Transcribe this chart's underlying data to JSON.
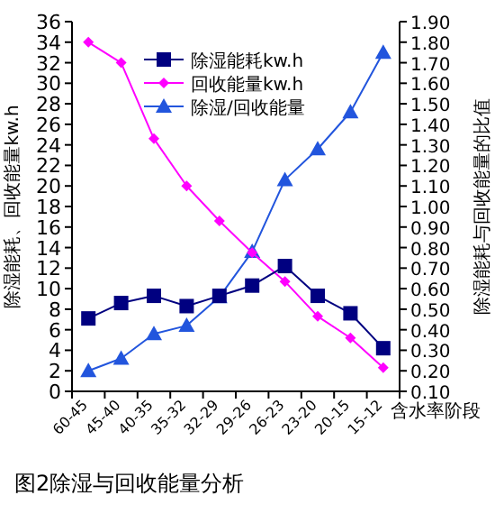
{
  "chart_data": {
    "type": "line",
    "title": "图2除湿与回收能量分析",
    "xlabel": "含水率阶段",
    "ylabel": "除湿能耗、回收能量kw.h",
    "y2label": "除湿能耗与回收能量的比值",
    "categories": [
      "60-45",
      "45-40",
      "40-35",
      "35-32",
      "32-29",
      "29-26",
      "26-23",
      "23-20",
      "20-15",
      "15-12"
    ],
    "series": [
      {
        "name": "除湿能耗kw.h",
        "color": "#000080",
        "marker": "square",
        "values": [
          7.1,
          8.6,
          9.3,
          8.3,
          9.3,
          10.3,
          12.2,
          9.3,
          7.6,
          4.2
        ]
      },
      {
        "name": "回收能量kw.h",
        "color": "#ff00ff",
        "marker": "diamond",
        "values": [
          34,
          32,
          24.6,
          20,
          16.6,
          13.5,
          10.7,
          7.3,
          5.2,
          2.3
        ]
      },
      {
        "name": "除湿/回收能量",
        "color": "#2255dd",
        "marker": "triangle",
        "axis": "y2",
        "values": [
          0.2,
          0.26,
          0.38,
          0.42,
          0.56,
          0.78,
          1.13,
          1.28,
          1.46,
          1.75
        ]
      }
    ],
    "ylim": [
      0,
      36
    ],
    "yticks": [
      0,
      2,
      4,
      6,
      8,
      10,
      12,
      14,
      16,
      18,
      20,
      22,
      24,
      26,
      28,
      30,
      32,
      34,
      36
    ],
    "y2lim": [
      0.1,
      1.9
    ],
    "y2ticks": [
      {
        "value": 0.1,
        "label": "0.10"
      },
      {
        "value": 0.2,
        "label": "0.20"
      },
      {
        "value": 0.3,
        "label": "0.30"
      },
      {
        "value": 0.4,
        "label": "0.40"
      },
      {
        "value": 0.5,
        "label": "0.50"
      },
      {
        "value": 0.6,
        "label": "0.60"
      },
      {
        "value": 0.7,
        "label": "0.70"
      },
      {
        "value": 0.8,
        "label": "0.80"
      },
      {
        "value": 0.9,
        "label": "0.90"
      },
      {
        "value": 1.0,
        "label": "1.00"
      },
      {
        "value": 1.1,
        "label": "1.10"
      },
      {
        "value": 1.2,
        "label": "1.20"
      },
      {
        "value": 1.3,
        "label": "1.30"
      },
      {
        "value": 1.4,
        "label": "1.40"
      },
      {
        "value": 1.5,
        "label": "1.50"
      },
      {
        "value": 1.6,
        "label": "1.60"
      },
      {
        "value": 1.7,
        "label": "1.70"
      },
      {
        "value": 1.8,
        "label": "1.80"
      },
      {
        "value": 1.9,
        "label": "1.90"
      }
    ],
    "legend": "top right",
    "grid": false
  }
}
